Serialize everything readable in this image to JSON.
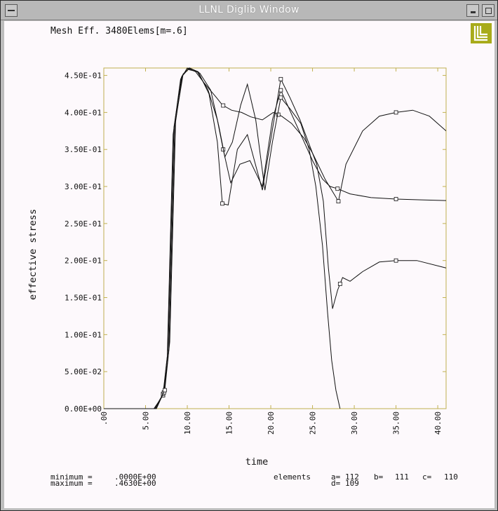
{
  "window": {
    "title": "LLNL Diglib Window",
    "logo_color": "#a8ab1a"
  },
  "plot_title": "Mesh Eff. 3480Elems[m=.6]",
  "footer": {
    "minimum_label": "minimum =",
    "minimum_value": ".0000E+00",
    "maximum_label": "maximum =",
    "maximum_value": ".4630E+00",
    "elements_label": "elements",
    "elements": [
      {
        "key": "a=",
        "id": "112"
      },
      {
        "key": "b=",
        "id": "111"
      },
      {
        "key": "c=",
        "id": "110"
      },
      {
        "key": "d=",
        "id": "109"
      }
    ]
  },
  "chart_data": {
    "type": "line",
    "xlabel": "time",
    "ylabel": "effective stress",
    "xlim": [
      0,
      41
    ],
    "ylim": [
      0,
      0.46
    ],
    "xticks": [
      0,
      5,
      10,
      15,
      20,
      25,
      30,
      35,
      40
    ],
    "xtick_labels": [
      ".00",
      "5.00",
      "10.00",
      "15.00",
      "20.00",
      "25.00",
      "30.00",
      "35.00",
      "40.00"
    ],
    "yticks": [
      0,
      0.05,
      0.1,
      0.15,
      0.2,
      0.25,
      0.3,
      0.35,
      0.4,
      0.45
    ],
    "ytick_labels": [
      "0.00E+00",
      "5.00E-02",
      "1.00E-01",
      "1.50E-01",
      "2.00E-01",
      "2.50E-01",
      "3.00E-01",
      "3.50E-01",
      "4.00E-01",
      "4.50E-01"
    ],
    "frame_color": "#c0b050",
    "series": [
      {
        "name": "a",
        "x": [
          0,
          6.0,
          7.1,
          7.6,
          8.3,
          9.2,
          10.0,
          11.0,
          12.0,
          13.5,
          14.2,
          15.3,
          16.5,
          17.6,
          19.0,
          20.3,
          21.3,
          22.5,
          24.0,
          25.0,
          26.5,
          27.3,
          28.1,
          29.0,
          31.0,
          33.0,
          35.0,
          37.0,
          39.0,
          41.0
        ],
        "y": [
          0,
          0,
          0.018,
          0.07,
          0.37,
          0.445,
          0.46,
          0.455,
          0.44,
          0.42,
          0.41,
          0.403,
          0.4,
          0.394,
          0.39,
          0.4,
          0.395,
          0.385,
          0.365,
          0.345,
          0.31,
          0.295,
          0.28,
          0.33,
          0.375,
          0.395,
          0.4,
          0.403,
          0.395,
          0.375
        ],
        "marker": "o",
        "marker_x": [
          7.1,
          14.3,
          20.9,
          28.1,
          35.0
        ]
      },
      {
        "name": "b",
        "x": [
          0,
          6.1,
          7.1,
          7.7,
          8.4,
          9.3,
          10.1,
          11.2,
          12.5,
          13.6,
          14.3,
          15.2,
          16.3,
          17.5,
          19.0,
          20.2,
          21.2,
          22.4,
          24.0,
          25.0,
          26.2,
          27.1,
          28.0,
          29.5,
          32.0,
          35.0,
          38.0,
          41.0
        ],
        "y": [
          0,
          0,
          0.02,
          0.08,
          0.38,
          0.448,
          0.458,
          0.455,
          0.43,
          0.39,
          0.35,
          0.305,
          0.33,
          0.335,
          0.3,
          0.39,
          0.43,
          0.4,
          0.36,
          0.335,
          0.31,
          0.3,
          0.297,
          0.29,
          0.285,
          0.283,
          0.282,
          0.281
        ],
        "marker": "o",
        "marker_x": [
          7.1,
          14.3,
          21.2,
          28.0,
          35.0
        ]
      },
      {
        "name": "c",
        "x": [
          0,
          6.2,
          7.2,
          7.8,
          8.5,
          9.4,
          10.2,
          11.3,
          12.6,
          13.6,
          14.2,
          14.9,
          16.0,
          17.2,
          19.0,
          20.1,
          21.2,
          22.3,
          23.5,
          24.5,
          25.5,
          26.3,
          26.9,
          27.4,
          28.0,
          28.6,
          29.5,
          31.0,
          33.0,
          35.0,
          37.5,
          41.0
        ],
        "y": [
          0,
          0,
          0.022,
          0.08,
          0.38,
          0.45,
          0.46,
          0.455,
          0.425,
          0.36,
          0.277,
          0.275,
          0.35,
          0.37,
          0.295,
          0.37,
          0.445,
          0.42,
          0.39,
          0.36,
          0.33,
          0.28,
          0.19,
          0.135,
          0.16,
          0.177,
          0.172,
          0.185,
          0.198,
          0.2,
          0.2,
          0.19
        ],
        "marker": "o",
        "marker_x": [
          7.2,
          14.2,
          21.2,
          28.3,
          35.0
        ]
      },
      {
        "name": "d",
        "x": [
          0,
          6.3,
          7.3,
          7.9,
          8.6,
          9.5,
          10.3,
          11.5,
          12.8,
          13.8,
          14.5,
          15.4,
          16.4,
          17.2,
          18.2,
          19.3,
          20.2,
          21.2,
          22.3,
          23.6,
          24.6,
          25.4,
          26.2,
          26.8,
          27.3,
          27.8,
          28.3
        ],
        "y": [
          0,
          0,
          0.025,
          0.09,
          0.39,
          0.452,
          0.46,
          0.453,
          0.43,
          0.38,
          0.34,
          0.36,
          0.41,
          0.438,
          0.39,
          0.295,
          0.36,
          0.42,
          0.405,
          0.385,
          0.35,
          0.3,
          0.22,
          0.13,
          0.065,
          0.025,
          0
        ],
        "marker": "o",
        "marker_x": [
          7.3,
          21.2
        ]
      }
    ]
  }
}
